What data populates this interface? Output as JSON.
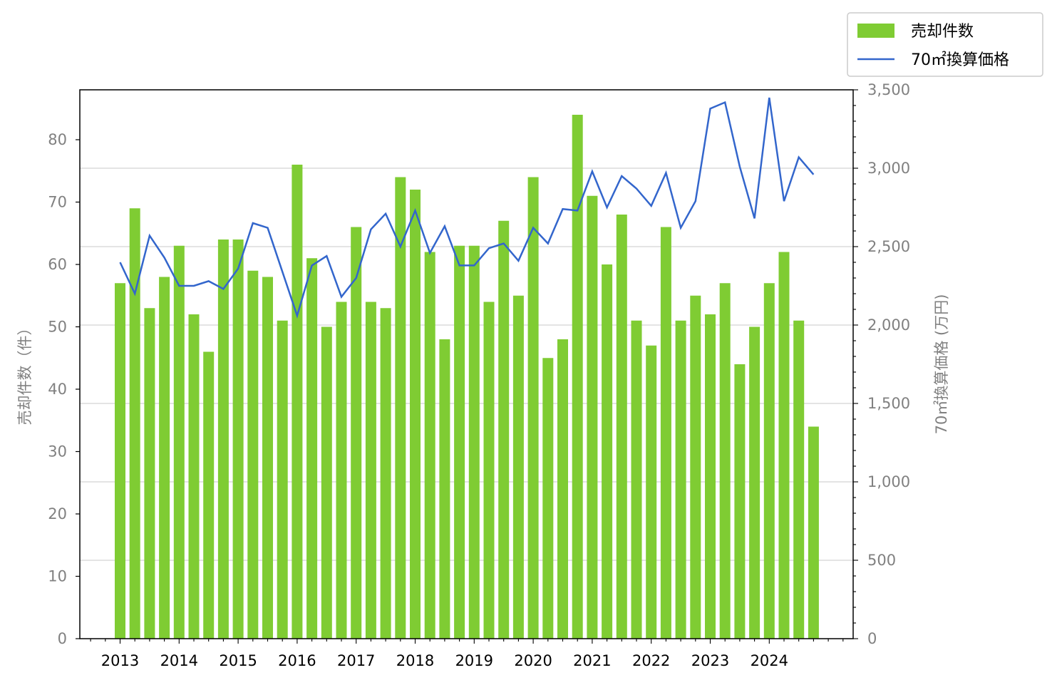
{
  "chart_data": {
    "type": "bar",
    "x_tick_labels": [
      "2013",
      "2014",
      "2015",
      "2016",
      "2017",
      "2018",
      "2019",
      "2020",
      "2021",
      "2022",
      "2023",
      "2024"
    ],
    "series": [
      {
        "name": "売却件数",
        "kind": "bar",
        "axis": "left",
        "color": "#7fcc33",
        "values": [
          57,
          69,
          53,
          58,
          63,
          52,
          46,
          64,
          64,
          59,
          58,
          51,
          76,
          61,
          50,
          54,
          66,
          54,
          53,
          74,
          72,
          62,
          48,
          63,
          63,
          54,
          67,
          55,
          74,
          45,
          48,
          84,
          71,
          60,
          68,
          51,
          47,
          66,
          51,
          55,
          52,
          57,
          44,
          50,
          57,
          62,
          51,
          34
        ]
      },
      {
        "name": "70㎡換算価格",
        "kind": "line",
        "axis": "right",
        "color": "#3366cc",
        "values": [
          2400,
          2200,
          2570,
          2430,
          2250,
          2250,
          2280,
          2230,
          2360,
          2650,
          2620,
          2340,
          2060,
          2380,
          2440,
          2180,
          2300,
          2610,
          2710,
          2500,
          2730,
          2460,
          2630,
          2380,
          2380,
          2490,
          2520,
          2410,
          2620,
          2520,
          2740,
          2730,
          2980,
          2750,
          2950,
          2870,
          2760,
          2970,
          2620,
          2790,
          3380,
          3420,
          3010,
          2680,
          3450,
          2790,
          3070,
          2960
        ]
      }
    ],
    "x_start": "2013 Q1",
    "x_period": "quarter",
    "ylabel_left": "売却件数（件）",
    "ylabel_right": "70㎡換算価格 (万円)",
    "ylim_left": [
      0,
      88
    ],
    "ylim_right": [
      0,
      3500
    ],
    "yticks_left": [
      "0",
      "10",
      "20",
      "30",
      "40",
      "50",
      "60",
      "70",
      "80"
    ],
    "yticks_right": [
      "0",
      "500",
      "1,000",
      "1,500",
      "2,000",
      "2,500",
      "3,000",
      "3,500"
    ],
    "grid": "horizontal, right axis",
    "legend_position": "top-right, outside plot"
  },
  "legend": {
    "bar_label": "売却件数",
    "line_label": "70㎡換算価格"
  }
}
